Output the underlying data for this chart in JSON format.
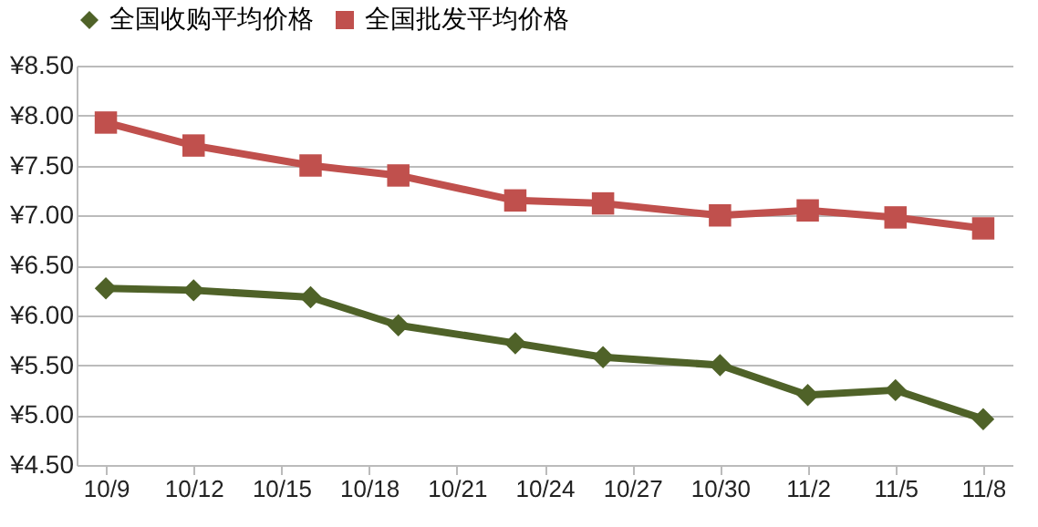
{
  "chart_data": {
    "type": "line",
    "x": [
      "--10-09",
      "--10-12",
      "--10-16",
      "--10-19",
      "--10-23",
      "--10-26",
      "--10-30",
      "--11-02",
      "--11-05",
      "--11-08"
    ],
    "series": [
      {
        "name": "全国收购平均价格",
        "color": "#4f6228",
        "marker": "diamond",
        "values": [
          6.27,
          6.25,
          6.18,
          5.9,
          5.72,
          5.58,
          5.5,
          5.2,
          5.25,
          4.96
        ]
      },
      {
        "name": "全国批发平均价格",
        "color": "#c0504d",
        "marker": "square",
        "values": [
          7.93,
          7.7,
          7.5,
          7.4,
          7.15,
          7.12,
          7.0,
          7.05,
          6.98,
          6.87
        ]
      }
    ],
    "xlim": [
      "--10-08",
      "--11-09"
    ],
    "xticks": [
      {
        "value": "--10-09",
        "label": "10/9"
      },
      {
        "value": "--10-12",
        "label": "10/12"
      },
      {
        "value": "--10-15",
        "label": "10/15"
      },
      {
        "value": "--10-18",
        "label": "10/18"
      },
      {
        "value": "--10-21",
        "label": "10/21"
      },
      {
        "value": "--10-24",
        "label": "10/24"
      },
      {
        "value": "--10-27",
        "label": "10/27"
      },
      {
        "value": "--10-30",
        "label": "10/30"
      },
      {
        "value": "--11-02",
        "label": "11/2"
      },
      {
        "value": "--11-05",
        "label": "11/5"
      },
      {
        "value": "--11-08",
        "label": "11/8"
      }
    ],
    "ylim": [
      4.5,
      8.5
    ],
    "yticks": [
      {
        "value": 4.5,
        "label": "¥4.50"
      },
      {
        "value": 5,
        "label": "¥5.00"
      },
      {
        "value": 5.5,
        "label": "¥5.50"
      },
      {
        "value": 6,
        "label": "¥6.00"
      },
      {
        "value": 6.5,
        "label": "¥6.50"
      },
      {
        "value": 7,
        "label": "¥7.00"
      },
      {
        "value": 7.5,
        "label": "¥7.50"
      },
      {
        "value": 8,
        "label": "¥8.00"
      },
      {
        "value": 8.5,
        "label": "¥8.50"
      }
    ],
    "grid": "y",
    "legend": "top",
    "line_style": "solid"
  }
}
